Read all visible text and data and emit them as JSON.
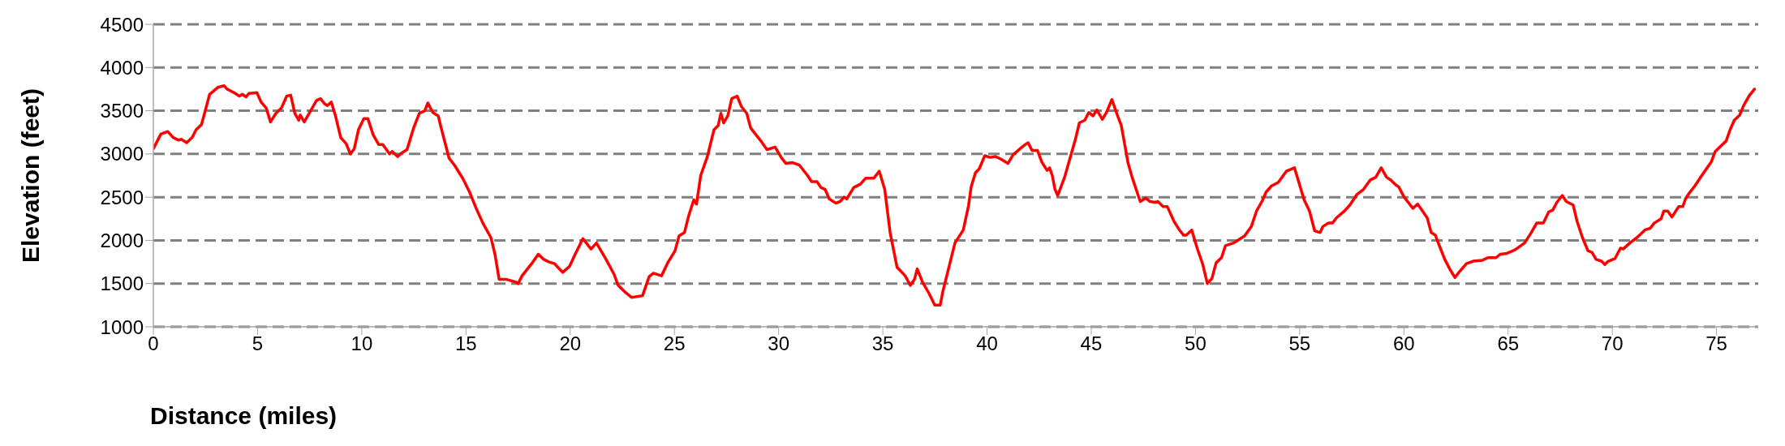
{
  "chart_data": {
    "type": "line",
    "xlabel": "Distance (miles)",
    "ylabel": "Elevation (feet)",
    "xlim": [
      0,
      77
    ],
    "xticks": [
      0,
      5,
      10,
      15,
      20,
      25,
      30,
      35,
      40,
      45,
      50,
      55,
      60,
      65,
      70,
      75
    ],
    "ylim": [
      1000,
      4500
    ],
    "yticks": [
      1000,
      1500,
      2000,
      2500,
      3000,
      3500,
      4000,
      4500
    ],
    "grid": "y",
    "marker": "none",
    "line_style": "solid",
    "x": [
      0,
      0.36,
      0.69,
      0.95,
      1.21,
      1.34,
      1.6,
      1.86,
      2.05,
      2.31,
      2.5,
      2.7,
      3.09,
      3.39,
      3.54,
      3.87,
      4.13,
      4.26,
      4.45,
      4.58,
      4.97,
      5.17,
      5.42,
      5.62,
      5.88,
      6.14,
      6.4,
      6.59,
      6.79,
      6.98,
      7.05,
      7.24,
      7.57,
      7.83,
      8.02,
      8.22,
      8.35,
      8.54,
      8.74,
      8.99,
      9.25,
      9.45,
      9.64,
      9.84,
      10.1,
      10.29,
      10.55,
      10.81,
      11.01,
      11.33,
      11.46,
      11.72,
      11.91,
      12.17,
      12.5,
      12.76,
      13.02,
      13.17,
      13.41,
      13.67,
      13.8,
      14.19,
      14.45,
      14.84,
      15.17,
      15.49,
      15.81,
      16.2,
      16.39,
      16.59,
      16.91,
      17.37,
      17.5,
      17.69,
      18.15,
      18.47,
      18.73,
      18.99,
      19.25,
      19.64,
      19.97,
      20.22,
      20.61,
      21.0,
      21.26,
      21.72,
      22.1,
      22.3,
      22.69,
      22.95,
      23.47,
      23.79,
      23.99,
      24.38,
      24.7,
      25.03,
      25.22,
      25.48,
      25.68,
      25.93,
      26.06,
      26.26,
      26.58,
      26.9,
      27.1,
      27.23,
      27.36,
      27.56,
      27.75,
      28.01,
      28.21,
      28.47,
      28.66,
      28.92,
      29.18,
      29.44,
      29.83,
      30.15,
      30.35,
      30.67,
      31.0,
      31.39,
      31.58,
      31.84,
      32.04,
      32.23,
      32.43,
      32.75,
      32.95,
      33.14,
      33.27,
      33.6,
      33.92,
      34.18,
      34.57,
      34.83,
      35.09,
      35.35,
      35.68,
      36.07,
      36.32,
      36.52,
      36.65,
      36.9,
      37.23,
      37.49,
      37.75,
      37.88,
      38.14,
      38.46,
      38.86,
      39.11,
      39.24,
      39.44,
      39.63,
      39.89,
      40.15,
      40.41,
      40.67,
      41.0,
      41.25,
      41.58,
      41.84,
      41.97,
      42.16,
      42.42,
      42.62,
      42.88,
      43.0,
      43.13,
      43.26,
      43.39,
      43.72,
      43.91,
      44.24,
      44.43,
      44.69,
      44.88,
      45.08,
      45.27,
      45.53,
      45.73,
      45.99,
      46.25,
      46.44,
      46.77,
      46.96,
      47.35,
      47.61,
      47.81,
      48.07,
      48.2,
      48.45,
      48.65,
      48.97,
      49.23,
      49.43,
      49.56,
      49.82,
      50.08,
      50.34,
      50.57,
      50.79,
      50.99,
      51.25,
      51.44,
      51.83,
      52.35,
      52.68,
      52.93,
      53.19,
      53.39,
      53.65,
      53.97,
      54.36,
      54.75,
      55.21,
      55.47,
      55.72,
      55.98,
      56.11,
      56.37,
      56.57,
      56.76,
      57.15,
      57.41,
      57.74,
      58.06,
      58.39,
      58.65,
      58.91,
      59.17,
      59.36,
      59.62,
      59.75,
      60.01,
      60.21,
      60.43,
      60.66,
      60.92,
      61.12,
      61.31,
      61.51,
      61.7,
      61.96,
      62.22,
      62.45,
      62.67,
      63.0,
      63.32,
      63.77,
      64.03,
      64.42,
      64.62,
      64.94,
      65.33,
      65.79,
      66.11,
      66.37,
      66.69,
      66.95,
      67.14,
      67.34,
      67.6,
      67.79,
      68.12,
      68.31,
      68.57,
      68.83,
      69.03,
      69.22,
      69.48,
      69.64,
      69.81,
      70.13,
      70.39,
      70.52,
      70.84,
      71.17,
      71.56,
      71.82,
      72.01,
      72.34,
      72.47,
      72.66,
      72.86,
      73.18,
      73.38,
      73.51,
      73.7,
      73.96,
      74.29,
      74.75,
      74.94,
      75.2,
      75.46,
      75.65,
      75.85,
      76.11,
      76.3,
      76.56,
      76.82
    ],
    "series": [
      {
        "color": "#ff0000",
        "values": [
          3060,
          3230,
          3260,
          3190,
          3160,
          3170,
          3130,
          3190,
          3280,
          3340,
          3510,
          3690,
          3770,
          3790,
          3750,
          3710,
          3670,
          3690,
          3660,
          3700,
          3710,
          3600,
          3530,
          3370,
          3470,
          3530,
          3670,
          3680,
          3470,
          3390,
          3450,
          3370,
          3510,
          3620,
          3640,
          3580,
          3560,
          3600,
          3440,
          3190,
          3120,
          3000,
          3060,
          3280,
          3410,
          3410,
          3220,
          3110,
          3110,
          3000,
          3030,
          2970,
          3010,
          3050,
          3310,
          3470,
          3500,
          3590,
          3480,
          3440,
          3310,
          2950,
          2870,
          2720,
          2560,
          2370,
          2200,
          2030,
          1840,
          1550,
          1550,
          1520,
          1500,
          1590,
          1730,
          1840,
          1780,
          1750,
          1730,
          1630,
          1700,
          1830,
          2020,
          1900,
          1970,
          1780,
          1610,
          1480,
          1390,
          1340,
          1360,
          1580,
          1620,
          1590,
          1750,
          1880,
          2050,
          2090,
          2280,
          2470,
          2420,
          2750,
          2970,
          3280,
          3330,
          3470,
          3360,
          3440,
          3640,
          3670,
          3550,
          3470,
          3300,
          3220,
          3140,
          3050,
          3080,
          2950,
          2890,
          2900,
          2870,
          2750,
          2680,
          2680,
          2610,
          2590,
          2480,
          2430,
          2450,
          2500,
          2480,
          2610,
          2650,
          2720,
          2720,
          2800,
          2590,
          2090,
          1690,
          1590,
          1480,
          1550,
          1670,
          1520,
          1380,
          1250,
          1250,
          1410,
          1660,
          1970,
          2120,
          2400,
          2620,
          2780,
          2830,
          2980,
          2960,
          2970,
          2940,
          2890,
          2990,
          3060,
          3110,
          3130,
          3040,
          3040,
          2910,
          2810,
          2840,
          2750,
          2590,
          2520,
          2730,
          2890,
          3170,
          3360,
          3390,
          3480,
          3440,
          3510,
          3400,
          3480,
          3630,
          3450,
          3330,
          2890,
          2730,
          2450,
          2490,
          2450,
          2440,
          2450,
          2390,
          2390,
          2220,
          2120,
          2060,
          2060,
          2120,
          1910,
          1730,
          1500,
          1560,
          1740,
          1800,
          1940,
          1970,
          2050,
          2160,
          2340,
          2450,
          2560,
          2630,
          2670,
          2800,
          2840,
          2470,
          2340,
          2110,
          2090,
          2160,
          2200,
          2200,
          2260,
          2340,
          2410,
          2530,
          2590,
          2700,
          2730,
          2840,
          2730,
          2700,
          2640,
          2620,
          2500,
          2440,
          2370,
          2420,
          2330,
          2260,
          2090,
          2060,
          1940,
          1780,
          1660,
          1570,
          1640,
          1730,
          1760,
          1770,
          1800,
          1800,
          1840,
          1850,
          1890,
          1970,
          2090,
          2200,
          2200,
          2330,
          2350,
          2440,
          2520,
          2450,
          2410,
          2220,
          2030,
          1880,
          1860,
          1780,
          1760,
          1720,
          1760,
          1790,
          1910,
          1900,
          1970,
          2030,
          2120,
          2140,
          2200,
          2250,
          2340,
          2340,
          2270,
          2390,
          2390,
          2480,
          2550,
          2630,
          2750,
          2910,
          3030,
          3090,
          3150,
          3280,
          3390,
          3450,
          3560,
          3670,
          3750
        ]
      }
    ]
  }
}
